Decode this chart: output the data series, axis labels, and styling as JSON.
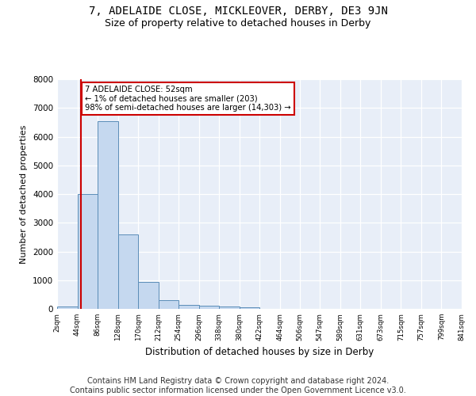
{
  "title_line1": "7, ADELAIDE CLOSE, MICKLEOVER, DERBY, DE3 9JN",
  "title_line2": "Size of property relative to detached houses in Derby",
  "xlabel": "Distribution of detached houses by size in Derby",
  "ylabel": "Number of detached properties",
  "bar_color": "#c5d8ef",
  "bar_edge_color": "#5b8db8",
  "background_color": "#e8eef8",
  "grid_color": "#ffffff",
  "property_line_color": "#cc0000",
  "annotation_text": "7 ADELAIDE CLOSE: 52sqm\n← 1% of detached houses are smaller (203)\n98% of semi-detached houses are larger (14,303) →",
  "property_size": 52,
  "bin_edges": [
    2,
    44,
    86,
    128,
    170,
    212,
    254,
    296,
    338,
    380,
    422,
    464,
    506,
    547,
    589,
    631,
    673,
    715,
    757,
    799,
    841
  ],
  "bin_counts": [
    80,
    4000,
    6550,
    2600,
    950,
    300,
    130,
    110,
    90,
    60,
    0,
    0,
    0,
    0,
    0,
    0,
    0,
    0,
    0,
    0
  ],
  "ylim": [
    0,
    8000
  ],
  "xlim": [
    2,
    841
  ],
  "tick_labels": [
    "2sqm",
    "44sqm",
    "86sqm",
    "128sqm",
    "170sqm",
    "212sqm",
    "254sqm",
    "296sqm",
    "338sqm",
    "380sqm",
    "422sqm",
    "464sqm",
    "506sqm",
    "547sqm",
    "589sqm",
    "631sqm",
    "673sqm",
    "715sqm",
    "757sqm",
    "799sqm",
    "841sqm"
  ],
  "footer": "Contains HM Land Registry data © Crown copyright and database right 2024.\nContains public sector information licensed under the Open Government Licence v3.0.",
  "title_fontsize": 10,
  "subtitle_fontsize": 9,
  "footer_fontsize": 7
}
